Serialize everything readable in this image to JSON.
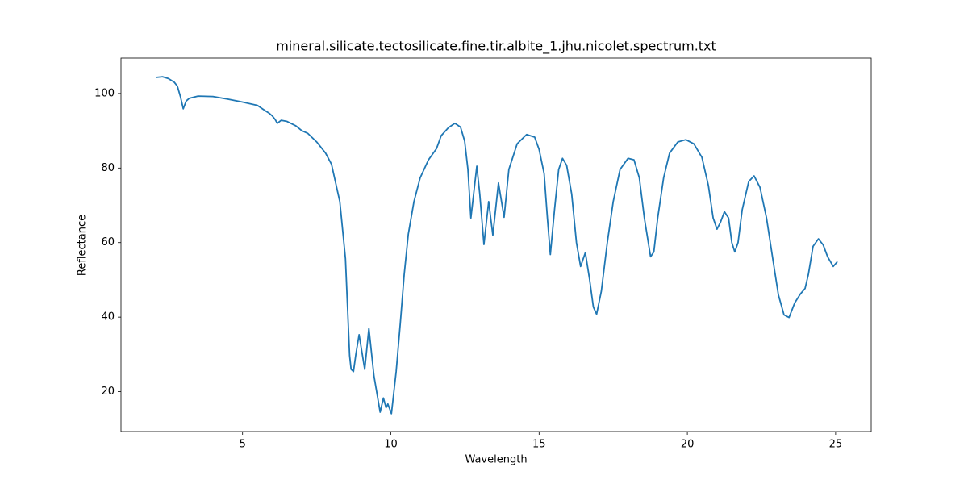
{
  "chart_data": {
    "type": "line",
    "title": "mineral.silicate.tectosilicate.fine.tir.albite_1.jhu.nicolet.spectrum.txt",
    "x_label": "Wavelength",
    "y_label": "Reflectance",
    "color": "#1f77b4",
    "xlim": [
      0.9,
      26.2
    ],
    "ylim": [
      9.3,
      109.5
    ],
    "xticks": [
      5,
      10,
      15,
      20,
      25
    ],
    "yticks": [
      20,
      40,
      60,
      80,
      100
    ],
    "grid": false,
    "x": [
      2.07,
      2.3,
      2.5,
      2.7,
      2.8,
      2.91,
      3.0,
      3.1,
      3.2,
      3.5,
      4.0,
      4.5,
      5.0,
      5.5,
      5.8,
      5.9,
      6.0,
      6.1,
      6.17,
      6.3,
      6.5,
      6.8,
      7.0,
      7.2,
      7.5,
      7.8,
      8.0,
      8.28,
      8.47,
      8.61,
      8.66,
      8.74,
      8.82,
      8.93,
      9.12,
      9.26,
      9.43,
      9.64,
      9.75,
      9.84,
      9.9,
      10.02,
      10.18,
      10.32,
      10.45,
      10.59,
      10.78,
      10.99,
      11.27,
      11.54,
      11.7,
      11.95,
      12.16,
      12.35,
      12.49,
      12.6,
      12.7,
      12.9,
      13.0,
      13.14,
      13.3,
      13.44,
      13.63,
      13.82,
      13.98,
      14.26,
      14.58,
      14.85,
      15.0,
      15.17,
      15.28,
      15.38,
      15.52,
      15.66,
      15.79,
      15.93,
      16.1,
      16.26,
      16.4,
      16.56,
      16.7,
      16.83,
      16.94,
      17.1,
      17.3,
      17.5,
      17.73,
      18.0,
      18.2,
      18.38,
      18.55,
      18.76,
      18.87,
      19.0,
      19.2,
      19.4,
      19.68,
      19.95,
      20.22,
      20.49,
      20.71,
      20.87,
      21.0,
      21.12,
      21.25,
      21.39,
      21.5,
      21.6,
      21.71,
      21.85,
      22.07,
      22.25,
      22.45,
      22.67,
      22.88,
      23.07,
      23.26,
      23.43,
      23.62,
      23.81,
      23.97,
      24.08,
      24.24,
      24.42,
      24.58,
      24.73,
      24.92,
      25.06
    ],
    "values": [
      104.3,
      104.5,
      104,
      103,
      102,
      99,
      95.9,
      98,
      98.7,
      99.3,
      99.2,
      98.5,
      97.7,
      96.8,
      95.2,
      94.7,
      94,
      93,
      92,
      92.8,
      92.5,
      91.3,
      90,
      89.3,
      87,
      84,
      81,
      71,
      55.7,
      29.7,
      26,
      25.4,
      30,
      35.3,
      26,
      37,
      24.3,
      14.5,
      18.3,
      15.7,
      16.7,
      14.1,
      25.4,
      38.4,
      51.4,
      62.3,
      71,
      77.4,
      82.2,
      85.2,
      88.7,
      90.9,
      92,
      91,
      87.2,
      79.6,
      66.6,
      80.5,
      73,
      59.5,
      71,
      62,
      76,
      66.8,
      79.6,
      86.5,
      89,
      88.3,
      85,
      78.5,
      66.6,
      56.8,
      68.8,
      79.6,
      82.6,
      80.7,
      73,
      60,
      53.6,
      57.3,
      50.3,
      42.7,
      40.8,
      47,
      60,
      71,
      79.6,
      82.6,
      82.2,
      77.4,
      66.6,
      56.2,
      57.5,
      66.6,
      77.4,
      84,
      87,
      87.6,
      86.5,
      82.9,
      75.3,
      66.6,
      63.6,
      65.5,
      68.3,
      66.6,
      60,
      57.5,
      60,
      68.8,
      76.4,
      77.9,
      74.8,
      66.6,
      55.7,
      46,
      40.6,
      39.9,
      43.8,
      46.2,
      47.7,
      51.4,
      59,
      61,
      59.4,
      56.2,
      53.6,
      54.9
    ]
  }
}
